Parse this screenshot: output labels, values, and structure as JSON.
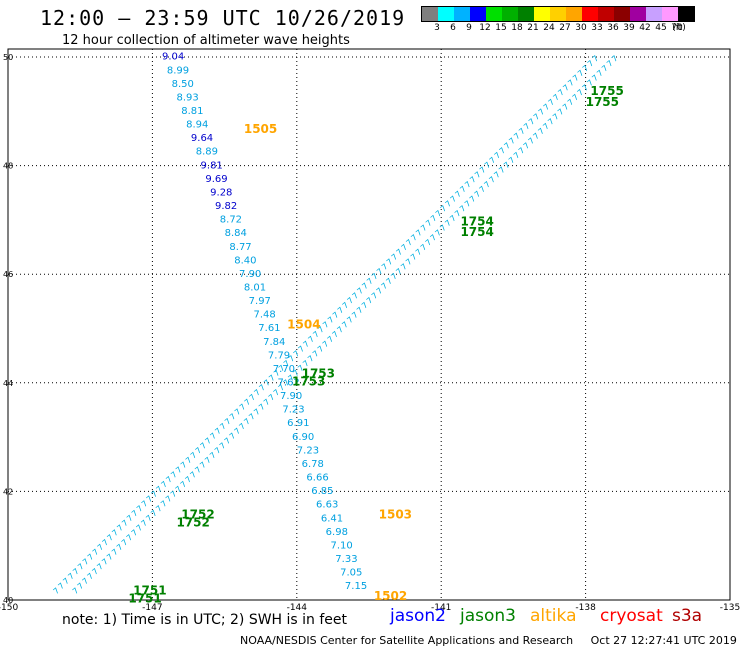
{
  "header": {
    "title": "12:00 – 23:59 UTC 10/26/2019",
    "subtitle": "12 hour collection of altimeter wave heights"
  },
  "color_scale": {
    "colors": [
      "#7f7f7f",
      "#00ffff",
      "#00b2ff",
      "#0000ff",
      "#00e000",
      "#00b000",
      "#008000",
      "#ffff00",
      "#ffd000",
      "#ffa500",
      "#ff0000",
      "#c00000",
      "#8b0000",
      "#a000a0",
      "#c8a0ff",
      "#ff99ff",
      "#000000"
    ],
    "labels": [
      "3",
      "6",
      "9",
      "12",
      "15",
      "18",
      "21",
      "24",
      "27",
      "30",
      "33",
      "36",
      "39",
      "42",
      "45",
      "70",
      "(ft)"
    ]
  },
  "chart_data": {
    "type": "scatter",
    "title": "12 hour collection of altimeter wave heights",
    "xlabel": "",
    "ylabel": "",
    "xlim": [
      -150,
      -135
    ],
    "ylim": [
      40,
      50
    ],
    "x_ticks": [
      "-150",
      "-147",
      "-144",
      "-141",
      "-138",
      "-135"
    ],
    "y_ticks": [
      "40",
      "42",
      "44",
      "46",
      "48",
      "50"
    ],
    "grid": true,
    "series": [
      {
        "name": "jason2",
        "color": "#0000ff",
        "points": [
          {
            "lon": -146.8,
            "lat": 49.95,
            "swh": "9.04",
            "color": "#0000cc"
          },
          {
            "lon": -146.7,
            "lat": 49.7,
            "swh": "8.99",
            "color": "#00a0e0"
          },
          {
            "lon": -146.6,
            "lat": 49.45,
            "swh": "8.50",
            "color": "#00a0e0"
          },
          {
            "lon": -146.5,
            "lat": 49.2,
            "swh": "8.93",
            "color": "#00a0e0"
          },
          {
            "lon": -146.4,
            "lat": 48.95,
            "swh": "8.81",
            "color": "#00a0e0"
          },
          {
            "lon": -146.3,
            "lat": 48.7,
            "swh": "8.94",
            "color": "#00a0e0"
          },
          {
            "lon": -146.2,
            "lat": 48.45,
            "swh": "9.64",
            "color": "#0000cc"
          },
          {
            "lon": -146.1,
            "lat": 48.2,
            "swh": "8.89",
            "color": "#00a0e0"
          },
          {
            "lon": -146.0,
            "lat": 47.95,
            "swh": "9.81",
            "color": "#0000cc"
          },
          {
            "lon": -145.9,
            "lat": 47.7,
            "swh": "9.69",
            "color": "#0000cc"
          },
          {
            "lon": -145.8,
            "lat": 47.45,
            "swh": "9.28",
            "color": "#0000cc"
          },
          {
            "lon": -145.7,
            "lat": 47.2,
            "swh": "9.82",
            "color": "#0000cc"
          },
          {
            "lon": -145.6,
            "lat": 46.95,
            "swh": "8.72",
            "color": "#00a0e0"
          },
          {
            "lon": -145.5,
            "lat": 46.7,
            "swh": "8.84",
            "color": "#00a0e0"
          },
          {
            "lon": -145.4,
            "lat": 46.45,
            "swh": "8.77",
            "color": "#00a0e0"
          },
          {
            "lon": -145.3,
            "lat": 46.2,
            "swh": "8.40",
            "color": "#00a0e0"
          },
          {
            "lon": -145.2,
            "lat": 45.95,
            "swh": "7.90",
            "color": "#00a0e0"
          },
          {
            "lon": -145.1,
            "lat": 45.7,
            "swh": "8.01",
            "color": "#00a0e0"
          },
          {
            "lon": -145.0,
            "lat": 45.45,
            "swh": "7.97",
            "color": "#00a0e0"
          },
          {
            "lon": -144.9,
            "lat": 45.2,
            "swh": "7.48",
            "color": "#00a0e0"
          },
          {
            "lon": -144.8,
            "lat": 44.95,
            "swh": "7.61",
            "color": "#00a0e0"
          },
          {
            "lon": -144.7,
            "lat": 44.7,
            "swh": "7.84",
            "color": "#00a0e0"
          },
          {
            "lon": -144.6,
            "lat": 44.45,
            "swh": "7.79",
            "color": "#00a0e0"
          },
          {
            "lon": -144.5,
            "lat": 44.2,
            "swh": "7.70",
            "color": "#00a0e0"
          },
          {
            "lon": -144.4,
            "lat": 43.95,
            "swh": "7.62",
            "color": "#00a0e0"
          },
          {
            "lon": -144.35,
            "lat": 43.7,
            "swh": "7.90",
            "color": "#00a0e0"
          },
          {
            "lon": -144.3,
            "lat": 43.45,
            "swh": "7.23",
            "color": "#00a0e0"
          },
          {
            "lon": -144.2,
            "lat": 43.2,
            "swh": "6.91",
            "color": "#00a0e0"
          },
          {
            "lon": -144.1,
            "lat": 42.95,
            "swh": "6.90",
            "color": "#00a0e0"
          },
          {
            "lon": -144.0,
            "lat": 42.7,
            "swh": "7.23",
            "color": "#00a0e0"
          },
          {
            "lon": -143.9,
            "lat": 42.45,
            "swh": "6.78",
            "color": "#00a0e0"
          },
          {
            "lon": -143.8,
            "lat": 42.2,
            "swh": "6.66",
            "color": "#00a0e0"
          },
          {
            "lon": -143.7,
            "lat": 41.95,
            "swh": "6.85",
            "color": "#00a0e0"
          },
          {
            "lon": -143.6,
            "lat": 41.7,
            "swh": "6.63",
            "color": "#00a0e0"
          },
          {
            "lon": -143.5,
            "lat": 41.45,
            "swh": "6.41",
            "color": "#00a0e0"
          },
          {
            "lon": -143.4,
            "lat": 41.2,
            "swh": "6.98",
            "color": "#00a0e0"
          },
          {
            "lon": -143.3,
            "lat": 40.95,
            "swh": "7.10",
            "color": "#00a0e0"
          },
          {
            "lon": -143.2,
            "lat": 40.7,
            "swh": "7.33",
            "color": "#00a0e0"
          },
          {
            "lon": -143.1,
            "lat": 40.45,
            "swh": "7.05",
            "color": "#00a0e0"
          },
          {
            "lon": -143.0,
            "lat": 40.2,
            "swh": "7.15",
            "color": "#00a0e0"
          }
        ]
      }
    ],
    "swaths": [
      {
        "from": [
          -149,
          40.1
        ],
        "to": [
          -137.8,
          49.9
        ],
        "color": "#00b0e0"
      },
      {
        "from": [
          -148.6,
          40.1
        ],
        "to": [
          -137.4,
          49.9
        ],
        "color": "#00b0e0"
      }
    ],
    "time_labels": [
      {
        "text": "1505",
        "lon": -145.1,
        "lat": 48.6,
        "color": "#ffa500"
      },
      {
        "text": "1504",
        "lon": -144.2,
        "lat": 45.0,
        "color": "#ffa500"
      },
      {
        "text": "1503",
        "lon": -142.3,
        "lat": 41.5,
        "color": "#ffa500"
      },
      {
        "text": "1502",
        "lon": -142.4,
        "lat": 40.0,
        "color": "#ffa500"
      },
      {
        "text": "1755",
        "lon": -137.9,
        "lat": 49.3,
        "color": "#008000"
      },
      {
        "text": "1755",
        "lon": -138.0,
        "lat": 49.1,
        "color": "#008000"
      },
      {
        "text": "1754",
        "lon": -140.6,
        "lat": 46.9,
        "color": "#008000"
      },
      {
        "text": "1754",
        "lon": -140.6,
        "lat": 46.7,
        "color": "#008000"
      },
      {
        "text": "1753",
        "lon": -143.9,
        "lat": 44.1,
        "color": "#008000"
      },
      {
        "text": "1753",
        "lon": -144.1,
        "lat": 43.95,
        "color": "#008000"
      },
      {
        "text": "1752",
        "lon": -146.4,
        "lat": 41.5,
        "color": "#008000"
      },
      {
        "text": "1752",
        "lon": -146.5,
        "lat": 41.35,
        "color": "#008000"
      },
      {
        "text": "1751",
        "lon": -147.4,
        "lat": 40.1,
        "color": "#008000"
      },
      {
        "text": "1751",
        "lon": -147.5,
        "lat": 39.95,
        "color": "#008000"
      }
    ]
  },
  "footer": {
    "note": "note: 1) Time is in UTC; 2) SWH is in feet",
    "legend": [
      {
        "name": "jason2",
        "color": "#0000ff"
      },
      {
        "name": "jason3",
        "color": "#008000"
      },
      {
        "name": "altika",
        "color": "#ffa500"
      },
      {
        "name": "cryosat",
        "color": "#ff0000"
      },
      {
        "name": "s3a",
        "color": "#b00000"
      }
    ],
    "credit": "NOAA/NESDIS Center for Satellite Applications and Research",
    "timestamp": "Oct 27 12:27:41 UTC 2019"
  }
}
